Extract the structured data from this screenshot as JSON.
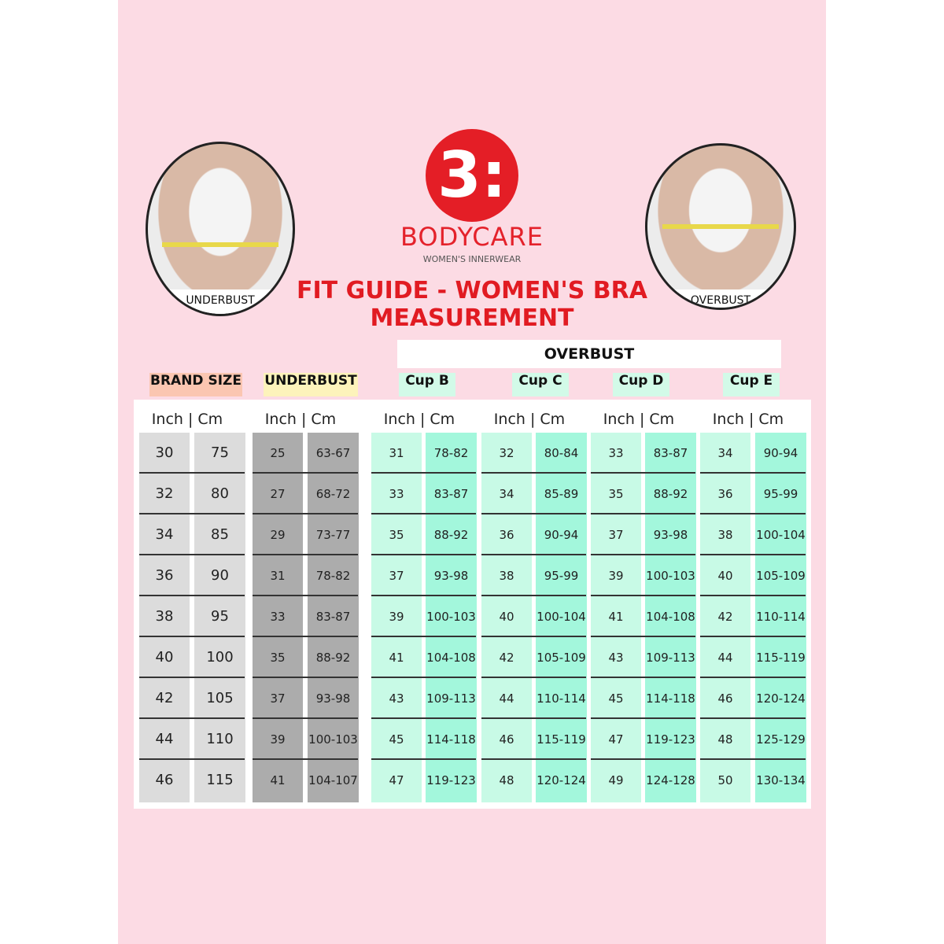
{
  "logo": {
    "mark": "3:",
    "brand": "BODYCARE",
    "tagline": "WOMEN'S INNERWEAR"
  },
  "title": {
    "line1": "FIT GUIDE - WOMEN'S BRA",
    "line2": "MEASUREMENT"
  },
  "photos": {
    "left_label": "UNDERBUST",
    "right_label": "OVERBUST"
  },
  "overbust_label": "OVERBUST",
  "group_labels": {
    "brand_size": "BRAND SIZE",
    "underbust": "UNDERBUST",
    "cup_b": "Cup B",
    "cup_c": "Cup C",
    "cup_d": "Cup D",
    "cup_e": "Cup E"
  },
  "unit_header": "Inch | Cm",
  "colors": {
    "brand_size_badge": "#fbc6b1",
    "underbust_badge": "#fdf3bb",
    "cup_badge": "#d2fae8",
    "brand_col": "#dcdcdc",
    "underbust_col": "#acacac",
    "cup_inch_col": "#c8fae6",
    "cup_cm_col": "#a3f7dc",
    "accent": "#e41e26"
  },
  "columns": [
    {
      "group": "brand_size",
      "inch": [
        "30",
        "32",
        "34",
        "36",
        "38",
        "40",
        "42",
        "44",
        "46"
      ],
      "cm": [
        "75",
        "80",
        "85",
        "90",
        "95",
        "100",
        "105",
        "110",
        "115"
      ]
    },
    {
      "group": "underbust",
      "inch": [
        "25",
        "27",
        "29",
        "31",
        "33",
        "35",
        "37",
        "39",
        "41"
      ],
      "cm": [
        "63-67",
        "68-72",
        "73-77",
        "78-82",
        "83-87",
        "88-92",
        "93-98",
        "100-103",
        "104-107"
      ]
    },
    {
      "group": "cup_b",
      "inch": [
        "31",
        "33",
        "35",
        "37",
        "39",
        "41",
        "43",
        "45",
        "47"
      ],
      "cm": [
        "78-82",
        "83-87",
        "88-92",
        "93-98",
        "100-103",
        "104-108",
        "109-113",
        "114-118",
        "119-123"
      ]
    },
    {
      "group": "cup_c",
      "inch": [
        "32",
        "34",
        "36",
        "38",
        "40",
        "42",
        "44",
        "46",
        "48"
      ],
      "cm": [
        "80-84",
        "85-89",
        "90-94",
        "95-99",
        "100-104",
        "105-109",
        "110-114",
        "115-119",
        "120-124"
      ]
    },
    {
      "group": "cup_d",
      "inch": [
        "33",
        "35",
        "37",
        "39",
        "41",
        "43",
        "45",
        "47",
        "49"
      ],
      "cm": [
        "83-87",
        "88-92",
        "93-98",
        "100-103",
        "104-108",
        "109-113",
        "114-118",
        "119-123",
        "124-128"
      ]
    },
    {
      "group": "cup_e",
      "inch": [
        "34",
        "36",
        "38",
        "40",
        "42",
        "44",
        "46",
        "48",
        "50"
      ],
      "cm": [
        "90-94",
        "95-99",
        "100-104",
        "105-109",
        "110-114",
        "115-119",
        "120-124",
        "125-129",
        "130-134"
      ]
    }
  ]
}
